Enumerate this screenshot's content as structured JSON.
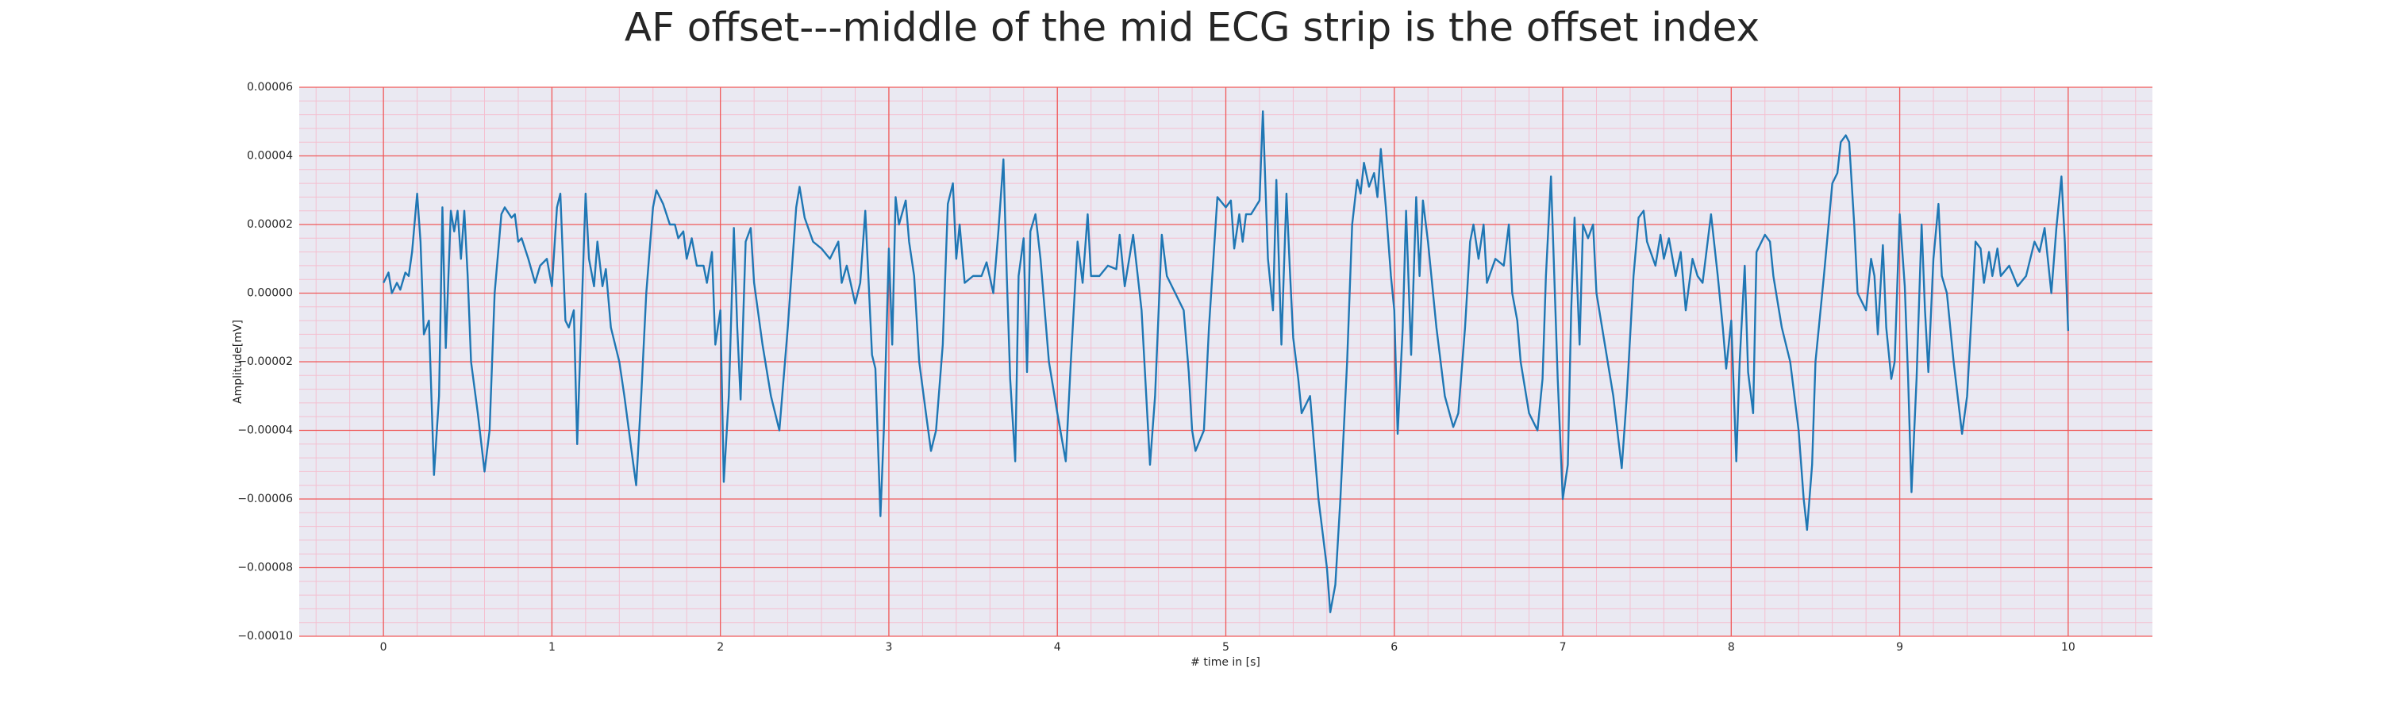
{
  "chart_data": {
    "type": "line",
    "title": "AF offset---middle of the mid ECG strip is the offset index",
    "xlabel": "# time in [s]",
    "ylabel": "Amplitude[mV]",
    "xlim": [
      -0.5,
      10.5
    ],
    "ylim": [
      -0.0001,
      6e-05
    ],
    "xticks": [
      0,
      1,
      2,
      3,
      4,
      5,
      6,
      7,
      8,
      9,
      10
    ],
    "yticks": [
      {
        "value": -0.0001,
        "label": "−0.00010"
      },
      {
        "value": -8e-05,
        "label": "−0.00008"
      },
      {
        "value": -6e-05,
        "label": "−0.00006"
      },
      {
        "value": -4e-05,
        "label": "−0.00004"
      },
      {
        "value": -2e-05,
        "label": "−0.00002"
      },
      {
        "value": 0,
        "label": "0.00000"
      },
      {
        "value": 2e-05,
        "label": "0.00002"
      },
      {
        "value": 4e-05,
        "label": "0.00004"
      },
      {
        "value": 6e-05,
        "label": "0.00006"
      }
    ],
    "grid": true,
    "grid_color": "#f05a5a",
    "minor_grid": true,
    "minor_grid_color": "#f4bfd0",
    "minor_divisions": 5,
    "background": "#eae9f2",
    "color": "#1f77b4",
    "x": [
      0.0,
      0.03,
      0.05,
      0.08,
      0.1,
      0.13,
      0.15,
      0.17,
      0.2,
      0.22,
      0.24,
      0.27,
      0.3,
      0.33,
      0.35,
      0.37,
      0.4,
      0.42,
      0.44,
      0.46,
      0.48,
      0.5,
      0.52,
      0.56,
      0.6,
      0.63,
      0.66,
      0.7,
      0.72,
      0.76,
      0.78,
      0.8,
      0.82,
      0.86,
      0.9,
      0.93,
      0.97,
      1.0,
      1.03,
      1.05,
      1.08,
      1.1,
      1.13,
      1.15,
      1.18,
      1.2,
      1.22,
      1.25,
      1.27,
      1.3,
      1.32,
      1.35,
      1.4,
      1.43,
      1.47,
      1.5,
      1.53,
      1.56,
      1.6,
      1.62,
      1.66,
      1.7,
      1.73,
      1.75,
      1.78,
      1.8,
      1.83,
      1.86,
      1.9,
      1.92,
      1.95,
      1.97,
      2.0,
      2.02,
      2.05,
      2.08,
      2.1,
      2.12,
      2.15,
      2.18,
      2.2,
      2.25,
      2.3,
      2.35,
      2.4,
      2.45,
      2.47,
      2.5,
      2.55,
      2.6,
      2.65,
      2.7,
      2.72,
      2.75,
      2.8,
      2.83,
      2.86,
      2.9,
      2.92,
      2.95,
      2.97,
      3.0,
      3.02,
      3.04,
      3.06,
      3.1,
      3.12,
      3.15,
      3.18,
      3.22,
      3.25,
      3.28,
      3.32,
      3.35,
      3.38,
      3.4,
      3.42,
      3.45,
      3.5,
      3.55,
      3.58,
      3.62,
      3.65,
      3.68,
      3.7,
      3.72,
      3.75,
      3.77,
      3.8,
      3.82,
      3.84,
      3.87,
      3.9,
      3.95,
      4.0,
      4.05,
      4.08,
      4.12,
      4.15,
      4.18,
      4.2,
      4.25,
      4.3,
      4.35,
      4.37,
      4.4,
      4.45,
      4.5,
      4.55,
      4.58,
      4.62,
      4.65,
      4.7,
      4.75,
      4.78,
      4.8,
      4.82,
      4.87,
      4.9,
      4.95,
      5.0,
      5.03,
      5.05,
      5.08,
      5.1,
      5.12,
      5.15,
      5.2,
      5.22,
      5.25,
      5.28,
      5.3,
      5.33,
      5.36,
      5.38,
      5.4,
      5.43,
      5.45,
      5.5,
      5.55,
      5.6,
      5.62,
      5.65,
      5.68,
      5.72,
      5.75,
      5.78,
      5.8,
      5.82,
      5.85,
      5.88,
      5.9,
      5.92,
      5.95,
      5.98,
      6.0,
      6.02,
      6.05,
      6.07,
      6.1,
      6.13,
      6.15,
      6.17,
      6.2,
      6.25,
      6.3,
      6.35,
      6.38,
      6.42,
      6.45,
      6.47,
      6.5,
      6.53,
      6.55,
      6.6,
      6.65,
      6.68,
      6.7,
      6.73,
      6.75,
      6.8,
      6.85,
      6.88,
      6.9,
      6.93,
      6.97,
      7.0,
      7.03,
      7.05,
      7.07,
      7.1,
      7.12,
      7.15,
      7.18,
      7.2,
      7.25,
      7.3,
      7.35,
      7.38,
      7.42,
      7.45,
      7.48,
      7.5,
      7.55,
      7.58,
      7.6,
      7.63,
      7.67,
      7.7,
      7.73,
      7.77,
      7.8,
      7.83,
      7.86,
      7.88,
      7.92,
      7.95,
      7.97,
      8.0,
      8.03,
      8.05,
      8.08,
      8.1,
      8.13,
      8.15,
      8.2,
      8.23,
      8.25,
      8.3,
      8.35,
      8.4,
      8.43,
      8.45,
      8.48,
      8.5,
      8.55,
      8.6,
      8.63,
      8.65,
      8.68,
      8.7,
      8.73,
      8.75,
      8.8,
      8.83,
      8.85,
      8.87,
      8.9,
      8.92,
      8.95,
      8.97,
      9.0,
      9.03,
      9.05,
      9.07,
      9.1,
      9.13,
      9.15,
      9.17,
      9.2,
      9.23,
      9.25,
      9.28,
      9.32,
      9.37,
      9.4,
      9.45,
      9.48,
      9.5,
      9.53,
      9.55,
      9.58,
      9.6,
      9.65,
      9.7,
      9.75,
      9.8,
      9.83,
      9.86,
      9.9,
      9.93,
      9.96,
      9.98,
      10.0
    ],
    "values": [
      3e-06,
      6e-06,
      0,
      3e-06,
      1e-06,
      6e-06,
      5e-06,
      1.2e-05,
      2.9e-05,
      1.5e-05,
      -1.2e-05,
      -8e-06,
      -5.3e-05,
      -3e-05,
      2.5e-05,
      -1.6e-05,
      2.4e-05,
      1.8e-05,
      2.4e-05,
      1e-05,
      2.4e-05,
      5e-06,
      -2e-05,
      -3.5e-05,
      -5.2e-05,
      -4e-05,
      0,
      2.3e-05,
      2.5e-05,
      2.2e-05,
      2.3e-05,
      1.5e-05,
      1.6e-05,
      1e-05,
      3e-06,
      8e-06,
      1e-05,
      2e-06,
      2.5e-05,
      2.9e-05,
      -8e-06,
      -1e-05,
      -5e-06,
      -4.4e-05,
      0,
      2.9e-05,
      1e-05,
      2e-06,
      1.5e-05,
      2e-06,
      7e-06,
      -1e-05,
      -2e-05,
      -3e-05,
      -4.5e-05,
      -5.6e-05,
      -3e-05,
      0,
      2.5e-05,
      3e-05,
      2.6e-05,
      2e-05,
      2e-05,
      1.6e-05,
      1.8e-05,
      1e-05,
      1.6e-05,
      8e-06,
      8e-06,
      3e-06,
      1.2e-05,
      -1.5e-05,
      -5e-06,
      -5.5e-05,
      -3e-05,
      1.9e-05,
      -1e-05,
      -3.1e-05,
      1.5e-05,
      1.9e-05,
      3e-06,
      -1.5e-05,
      -3e-05,
      -4e-05,
      -1e-05,
      2.5e-05,
      3.1e-05,
      2.2e-05,
      1.5e-05,
      1.3e-05,
      1e-05,
      1.5e-05,
      3e-06,
      8e-06,
      -3e-06,
      3e-06,
      2.4e-05,
      -1.8e-05,
      -2.2e-05,
      -6.5e-05,
      -4e-05,
      1.3e-05,
      -1.5e-05,
      2.8e-05,
      2e-05,
      2.7e-05,
      1.5e-05,
      5e-06,
      -2e-05,
      -3.5e-05,
      -4.6e-05,
      -4e-05,
      -1.5e-05,
      2.6e-05,
      3.2e-05,
      1e-05,
      2e-05,
      3e-06,
      5e-06,
      5e-06,
      9e-06,
      0,
      1.8e-05,
      3.9e-05,
      5e-06,
      -2.5e-05,
      -4.9e-05,
      5e-06,
      1.6e-05,
      -2.3e-05,
      1.8e-05,
      2.3e-05,
      1e-05,
      -2e-05,
      -3.5e-05,
      -4.9e-05,
      -2e-05,
      1.5e-05,
      3e-06,
      2.3e-05,
      5e-06,
      5e-06,
      8e-06,
      7e-06,
      1.7e-05,
      2e-06,
      1.7e-05,
      -5e-06,
      -5e-05,
      -3e-05,
      1.7e-05,
      5e-06,
      0,
      -5e-06,
      -2.3e-05,
      -4e-05,
      -4.6e-05,
      -4e-05,
      -1e-05,
      2.8e-05,
      2.5e-05,
      2.7e-05,
      1.3e-05,
      2.3e-05,
      1.5e-05,
      2.3e-05,
      2.3e-05,
      2.7e-05,
      5.3e-05,
      1e-05,
      -5e-06,
      3.3e-05,
      -1.5e-05,
      2.9e-05,
      7e-06,
      -1.3e-05,
      -2.5e-05,
      -3.5e-05,
      -3e-05,
      -6e-05,
      -8e-05,
      -9.3e-05,
      -8.5e-05,
      -6e-05,
      -2e-05,
      2e-05,
      3.3e-05,
      2.9e-05,
      3.8e-05,
      3.1e-05,
      3.5e-05,
      2.8e-05,
      4.2e-05,
      2.5e-05,
      5e-06,
      -5e-06,
      -4.1e-05,
      -1e-05,
      2.4e-05,
      -1.8e-05,
      2.8e-05,
      5e-06,
      2.7e-05,
      1.5e-05,
      -1e-05,
      -3e-05,
      -3.9e-05,
      -3.5e-05,
      -1e-05,
      1.5e-05,
      2e-05,
      1e-05,
      2e-05,
      3e-06,
      1e-05,
      8e-06,
      2e-05,
      0,
      -8e-06,
      -2e-05,
      -3.5e-05,
      -4e-05,
      -2.5e-05,
      5e-06,
      3.4e-05,
      -2.5e-05,
      -6e-05,
      -5e-05,
      -5e-06,
      2.2e-05,
      -1.5e-05,
      2e-05,
      1.6e-05,
      2e-05,
      0,
      -1.5e-05,
      -3e-05,
      -5.1e-05,
      -3e-05,
      5e-06,
      2.2e-05,
      2.4e-05,
      1.5e-05,
      8e-06,
      1.7e-05,
      1e-05,
      1.6e-05,
      5e-06,
      1.2e-05,
      -5e-06,
      1e-05,
      5e-06,
      3e-06,
      1.5e-05,
      2.3e-05,
      5e-06,
      -1e-05,
      -2.2e-05,
      -8e-06,
      -4.9e-05,
      -2e-05,
      8e-06,
      -2.3e-05,
      -3.5e-05,
      1.2e-05,
      1.7e-05,
      1.5e-05,
      5e-06,
      -1e-05,
      -2e-05,
      -4e-05,
      -6e-05,
      -6.9e-05,
      -5e-05,
      -2e-05,
      5e-06,
      3.2e-05,
      3.5e-05,
      4.4e-05,
      4.6e-05,
      4.4e-05,
      2e-05,
      0,
      -5e-06,
      1e-05,
      5e-06,
      -1.2e-05,
      1.4e-05,
      -1e-05,
      -2.5e-05,
      -2e-05,
      2.3e-05,
      2e-06,
      -2.5e-05,
      -5.8e-05,
      -2.5e-05,
      2e-05,
      -5e-06,
      -2.3e-05,
      1e-05,
      2.6e-05,
      5e-06,
      0,
      -2e-05,
      -4.1e-05,
      -3e-05,
      1.5e-05,
      1.3e-05,
      3e-06,
      1.2e-05,
      5e-06,
      1.3e-05,
      5e-06,
      8e-06,
      2e-06,
      5e-06,
      1.5e-05,
      1.2e-05,
      1.9e-05,
      0,
      1.9e-05,
      3.4e-05,
      1.5e-05,
      -1.1e-05
    ]
  }
}
